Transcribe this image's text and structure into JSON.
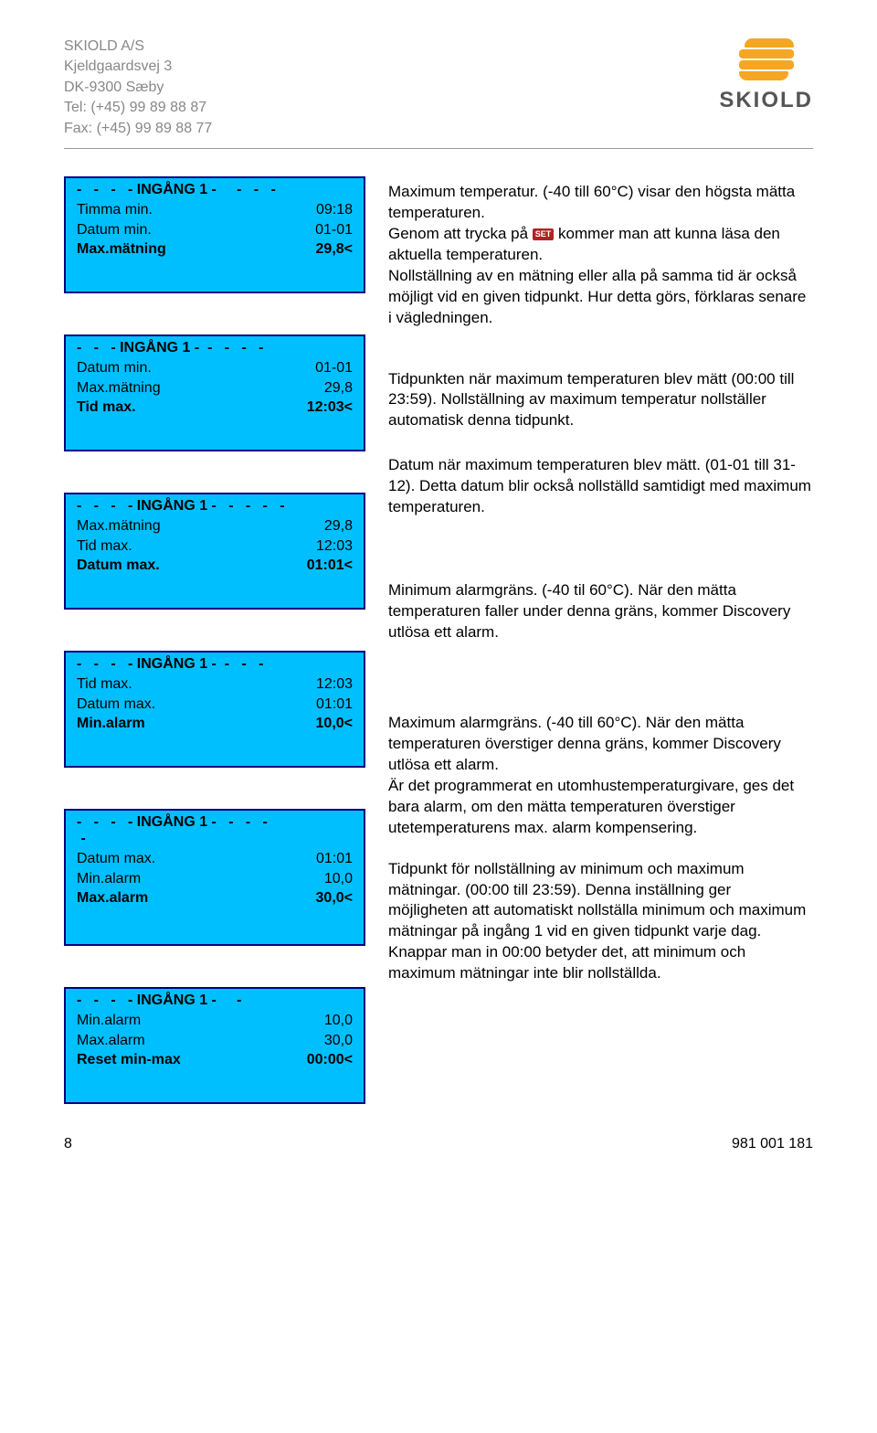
{
  "header": {
    "company": "SKIOLD A/S",
    "address": "Kjeldgaardsvej 3",
    "postal": "DK-9300 Sæby",
    "tel": "Tel: (+45) 99 89 88 87",
    "fax": "Fax: (+45) 99 89 88 77",
    "logo_text": "SKIOLD"
  },
  "panels": [
    {
      "header": "-   -   -   - INGÅNG 1 -     -   -   -",
      "rows": [
        {
          "label": "Timma min.",
          "value": "09:18",
          "bold": false
        },
        {
          "label": "Datum min.",
          "value": "01-01",
          "bold": false
        },
        {
          "label": "Max.mätning",
          "value": "29,8<",
          "bold": true
        }
      ]
    },
    {
      "header": "-   -   - INGÅNG 1 -  -   -   -   -",
      "rows": [
        {
          "label": "Datum min.",
          "value": "01-01",
          "bold": false
        },
        {
          "label": "Max.mätning",
          "value": "29,8",
          "bold": false
        },
        {
          "label": "Tid max.",
          "value": "12:03<",
          "bold": true
        }
      ]
    },
    {
      "header": "-   -   -   - INGÅNG 1 -   -   -   -   -",
      "rows": [
        {
          "label": "Max.mätning",
          "value": "29,8",
          "bold": false
        },
        {
          "label": "Tid max.",
          "value": "12:03",
          "bold": false
        },
        {
          "label": "Datum max.",
          "value": "01:01<",
          "bold": true
        }
      ]
    },
    {
      "header": "-   -   -   - INGÅNG 1 -  -   -   -",
      "rows": [
        {
          "label": "Tid max.",
          "value": "12:03",
          "bold": false
        },
        {
          "label": "Datum max.",
          "value": "01:01",
          "bold": false
        },
        {
          "label": "Min.alarm",
          "value": "10,0<",
          "bold": true
        }
      ]
    },
    {
      "header": "-   -   -   - INGÅNG 1 -   -   -   -\n -",
      "rows": [
        {
          "label": "Datum max.",
          "value": "01:01",
          "bold": false
        },
        {
          "label": "Min.alarm",
          "value": "10,0",
          "bold": false
        },
        {
          "label": "Max.alarm",
          "value": "30,0<",
          "bold": true
        }
      ]
    },
    {
      "header": "-   -   -   - INGÅNG 1 -     -",
      "rows": [
        {
          "label": "Min.alarm",
          "value": "10,0",
          "bold": false
        },
        {
          "label": "Max.alarm",
          "value": "30,0",
          "bold": false
        },
        {
          "label": "Reset min-max",
          "value": "00:00<",
          "bold": true
        }
      ]
    }
  ],
  "right": {
    "p1a": "Maximum temperatur. (-40 till 60°C) visar den högsta mätta temperaturen.",
    "p1b_pre": "Genom att trycka på ",
    "p1b_icon": "SET",
    "p1b_post": " kommer man att kunna läsa den aktuella temperaturen.",
    "p1c": "Nollställning av en mätning eller alla på samma tid är också möjligt vid en given tidpunkt. Hur detta görs, förklaras senare i vägledningen.",
    "p2": "Tidpunkten när maximum temperaturen blev mätt (00:00 till 23:59). Nollställning av maximum temperatur nollställer automatisk denna tidpunkt.",
    "p3": "Datum när maximum temperaturen blev mätt. (01-01 till 31-12). Detta datum blir också nollställd samtidigt med maximum temperaturen.",
    "p4": "Minimum alarmgräns. (-40 til 60°C). När den mätta temperaturen faller under denna gräns, kommer Discovery utlösa ett alarm.",
    "p5a": "Maximum alarmgräns. (-40 till 60°C). När den mätta temperaturen överstiger denna gräns, kommer Discovery utlösa ett alarm.",
    "p5b": "Är det programmerat en utomhustemperaturgivare, ges det bara alarm, om den mätta temperaturen överstiger utetemperaturens max. alarm kompensering.",
    "p6": "Tidpunkt för nollställning av minimum och maximum mätningar. (00:00 till 23:59). Denna inställning ger möjligheten att automatiskt nollställa minimum och maximum mätningar på ingång 1 vid en given tidpunkt varje dag. Knappar man in 00:00 betyder det, att minimum och maximum mätningar inte blir nollställda."
  },
  "footer": {
    "page": "8",
    "docid": "981 001 181"
  },
  "colors": {
    "panel_bg": "#00bfff",
    "panel_border": "#000080",
    "header_text": "#888888",
    "logo_orange": "#f5a623",
    "set_bg": "#b22222"
  }
}
